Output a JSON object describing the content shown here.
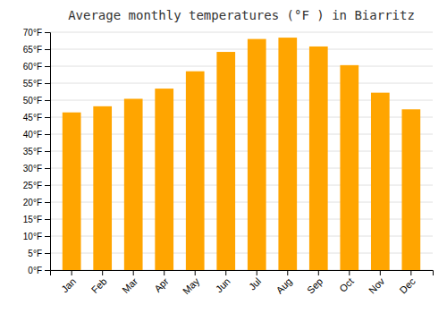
{
  "chart_data": {
    "type": "bar",
    "title": "Average monthly temperatures (°F ) in Biarritz",
    "categories": [
      "Jan",
      "Feb",
      "Mar",
      "Apr",
      "May",
      "Jun",
      "Jul",
      "Aug",
      "Sep",
      "Oct",
      "Nov",
      "Dec"
    ],
    "values": [
      46.4,
      48.2,
      50.4,
      53.4,
      58.5,
      64.2,
      68.0,
      68.4,
      65.8,
      60.3,
      52.2,
      47.3
    ],
    "color": "#FFA500",
    "ylim": [
      0,
      70
    ],
    "yticks": [
      {
        "value": 0,
        "label": "0°F"
      },
      {
        "value": 5,
        "label": "5°F"
      },
      {
        "value": 10,
        "label": "10°F"
      },
      {
        "value": 15,
        "label": "15°F"
      },
      {
        "value": 20,
        "label": "20°F"
      },
      {
        "value": 25,
        "label": "25°F"
      },
      {
        "value": 30,
        "label": "30°F"
      },
      {
        "value": 35,
        "label": "35°F"
      },
      {
        "value": 40,
        "label": "40°F"
      },
      {
        "value": 45,
        "label": "45°F"
      },
      {
        "value": 50,
        "label": "50°F"
      },
      {
        "value": 55,
        "label": "55°F"
      },
      {
        "value": 60,
        "label": "60°F"
      },
      {
        "value": 65,
        "label": "65°F"
      },
      {
        "value": 70,
        "label": "70°F"
      }
    ],
    "grid": true
  }
}
